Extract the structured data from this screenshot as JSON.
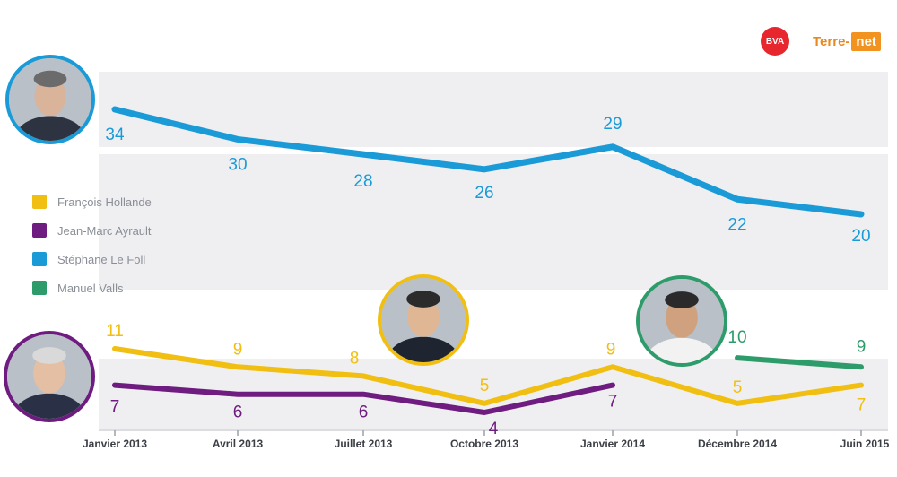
{
  "logos": {
    "bva": "BVA",
    "terre_prefix": "Terre-",
    "terre_suffix": "net"
  },
  "colors": {
    "hollande": "#f0bf12",
    "ayrault": "#6f1c80",
    "lefoll": "#1a9bd7",
    "valls": "#2e9c6a",
    "band": "#efeff1"
  },
  "chart_data": {
    "type": "line",
    "categories": [
      "Janvier 2013",
      "Avril 2013",
      "Juillet 2013",
      "Octobre 2013",
      "Janvier 2014",
      "Décembre 2014",
      "Juin 2015"
    ],
    "series": [
      {
        "name": "François Hollande",
        "key": "hollande",
        "values": [
          11,
          9,
          8,
          5,
          9,
          5,
          7
        ],
        "labels": [
          "11",
          "9",
          "8",
          "5",
          "9",
          "5",
          "7"
        ]
      },
      {
        "name": "Jean-Marc Ayrault",
        "key": "ayrault",
        "values": [
          7,
          6,
          6,
          4,
          7,
          null,
          null
        ],
        "labels": [
          "7",
          "6",
          "6",
          "4",
          "7",
          "",
          ""
        ]
      },
      {
        "name": "Stéphane Le Foll",
        "key": "lefoll",
        "values": [
          34,
          30,
          28,
          26,
          29,
          22,
          20
        ],
        "labels": [
          "34",
          "30",
          "28",
          "26",
          "29",
          "22",
          "20"
        ]
      },
      {
        "name": "Manuel Valls",
        "key": "valls",
        "values": [
          null,
          null,
          null,
          null,
          null,
          10,
          9
        ],
        "labels": [
          "",
          "",
          "",
          "",
          "",
          "10",
          "9"
        ]
      }
    ],
    "axis_break": "between 11 and 20",
    "legend_position": "left-middle",
    "grid": false
  }
}
